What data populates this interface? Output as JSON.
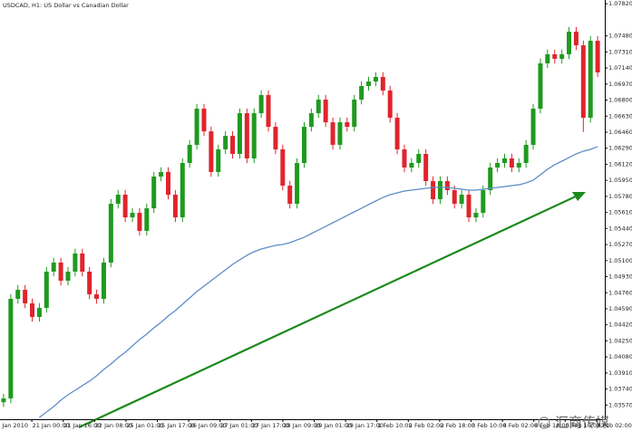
{
  "chart_data": {
    "type": "candlestick",
    "title": "USDCAD, H1: US Dollar vs Canadian Dollar",
    "up_color": "#1f9a1f",
    "down_color": "#e0242c",
    "open": [
      1.036,
      1.0364,
      1.04695,
      1.04791,
      1.04647,
      1.04503,
      1.04599,
      1.04983,
      1.05079,
      1.04887,
      1.04983,
      1.05175,
      1.04983,
      1.04743,
      1.04695,
      1.05079,
      1.05702,
      1.05798,
      1.05558,
      1.05606,
      1.05415,
      1.05654,
      1.0599,
      1.06038,
      1.05798,
      1.05558,
      1.06134,
      1.06326,
      1.06709,
      1.06469,
      1.06038,
      1.06278,
      1.06421,
      1.0623,
      1.06661,
      1.06182,
      1.06661,
      1.06853,
      1.06517,
      1.06278,
      1.05894,
      1.05702,
      1.06134,
      1.06517,
      1.06661,
      1.06805,
      1.06565,
      1.06326,
      1.06565,
      1.06517,
      1.06805,
      1.06949,
      1.06997,
      1.07045,
      1.06901,
      1.06613,
      1.06278,
      1.06086,
      1.06134,
      1.0623,
      1.05942,
      1.0575,
      1.05942,
      1.05846,
      1.05702,
      1.05798,
      1.05558,
      1.05606,
      1.05846,
      1.06086,
      1.06134,
      1.06182,
      1.06086,
      1.06134,
      1.06326,
      1.06709,
      1.07189,
      1.07285,
      1.07237,
      1.07285,
      1.07524,
      1.0738,
      1.06613,
      1.07428
    ],
    "high": [
      1.0369,
      1.04745,
      1.04841,
      1.04841,
      1.04697,
      1.04649,
      1.05033,
      1.05129,
      1.05129,
      1.05033,
      1.05225,
      1.05225,
      1.05033,
      1.04793,
      1.05129,
      1.05752,
      1.05848,
      1.05848,
      1.05656,
      1.05656,
      1.05704,
      1.0604,
      1.06088,
      1.06088,
      1.05848,
      1.06184,
      1.06376,
      1.06759,
      1.06759,
      1.06519,
      1.06328,
      1.06471,
      1.06471,
      1.06711,
      1.06711,
      1.06711,
      1.06903,
      1.06903,
      1.06567,
      1.06328,
      1.05944,
      1.06184,
      1.06567,
      1.06711,
      1.06855,
      1.06855,
      1.06615,
      1.06615,
      1.06615,
      1.06855,
      1.06999,
      1.07047,
      1.07095,
      1.07095,
      1.06951,
      1.06663,
      1.06328,
      1.06184,
      1.0628,
      1.0628,
      1.05992,
      1.05992,
      1.05992,
      1.05896,
      1.05848,
      1.05848,
      1.05656,
      1.05896,
      1.06136,
      1.06184,
      1.06232,
      1.06232,
      1.06184,
      1.06376,
      1.06759,
      1.07239,
      1.07335,
      1.07335,
      1.07335,
      1.07574,
      1.07574,
      1.0743,
      1.07478,
      1.07478
    ],
    "low": [
      1.0355,
      1.0359,
      1.04645,
      1.04597,
      1.04453,
      1.04453,
      1.04549,
      1.04933,
      1.04837,
      1.04837,
      1.04933,
      1.04933,
      1.04693,
      1.04645,
      1.04645,
      1.05029,
      1.05652,
      1.05508,
      1.05508,
      1.05365,
      1.05365,
      1.05604,
      1.0594,
      1.05748,
      1.05508,
      1.05508,
      1.06084,
      1.06276,
      1.06419,
      1.05988,
      1.05988,
      1.06228,
      1.0618,
      1.0618,
      1.06132,
      1.06132,
      1.06611,
      1.06467,
      1.06228,
      1.05844,
      1.05652,
      1.05652,
      1.06084,
      1.06467,
      1.06611,
      1.06515,
      1.06276,
      1.06276,
      1.06467,
      1.06467,
      1.06755,
      1.06899,
      1.06947,
      1.06851,
      1.06563,
      1.06228,
      1.06036,
      1.06036,
      1.06084,
      1.05892,
      1.057,
      1.057,
      1.05796,
      1.05652,
      1.05652,
      1.05508,
      1.05508,
      1.05556,
      1.05796,
      1.06036,
      1.06084,
      1.06036,
      1.06036,
      1.06084,
      1.06276,
      1.06659,
      1.07139,
      1.07187,
      1.07187,
      1.07235,
      1.0733,
      1.06463,
      1.06563,
      1.07043
    ],
    "close": [
      1.0364,
      1.04695,
      1.04791,
      1.04647,
      1.04503,
      1.04599,
      1.04983,
      1.05079,
      1.04887,
      1.04983,
      1.05175,
      1.04983,
      1.04743,
      1.04695,
      1.05079,
      1.05702,
      1.05798,
      1.05558,
      1.05606,
      1.05415,
      1.05654,
      1.0599,
      1.06038,
      1.05798,
      1.05558,
      1.06134,
      1.06326,
      1.06709,
      1.06469,
      1.06038,
      1.06278,
      1.06421,
      1.0623,
      1.06661,
      1.06182,
      1.06661,
      1.06853,
      1.06517,
      1.06278,
      1.05894,
      1.05702,
      1.06134,
      1.06517,
      1.06661,
      1.06805,
      1.06565,
      1.06326,
      1.06565,
      1.06517,
      1.06805,
      1.06949,
      1.06997,
      1.07045,
      1.06901,
      1.06613,
      1.06278,
      1.06086,
      1.06134,
      1.0623,
      1.05942,
      1.0575,
      1.05942,
      1.05846,
      1.05702,
      1.05798,
      1.05558,
      1.05606,
      1.05846,
      1.06086,
      1.06134,
      1.06182,
      1.06086,
      1.06134,
      1.06326,
      1.06709,
      1.07189,
      1.07285,
      1.07237,
      1.07285,
      1.07524,
      1.0738,
      1.06613,
      1.07428,
      1.07093
    ],
    "series": [
      {
        "color": "#5a8fc8",
        "values": [
          null,
          null,
          null,
          null,
          null,
          1.03439,
          1.03497,
          1.03554,
          1.03621,
          1.03679,
          1.03727,
          1.03775,
          1.03823,
          1.0388,
          1.03947,
          1.04005,
          1.04072,
          1.0413,
          1.04197,
          1.04264,
          1.04321,
          1.04388,
          1.04446,
          1.04513,
          1.04571,
          1.04638,
          1.04705,
          1.04772,
          1.0483,
          1.04887,
          1.04945,
          1.05002,
          1.0506,
          1.05108,
          1.05156,
          1.05194,
          1.05223,
          1.05242,
          1.05261,
          1.05271,
          1.0529,
          1.05319,
          1.05347,
          1.05386,
          1.05424,
          1.05462,
          1.05501,
          1.05539,
          1.05578,
          1.05616,
          1.05654,
          1.05693,
          1.05731,
          1.05769,
          1.05798,
          1.05817,
          1.05837,
          1.05846,
          1.05856,
          1.05865,
          1.05875,
          1.05875,
          1.05875,
          1.05865,
          1.05856,
          1.05846,
          1.05846,
          1.05856,
          1.05865,
          1.05875,
          1.05884,
          1.05894,
          1.05903,
          1.05923,
          1.05952,
          1.06009,
          1.06067,
          1.06115,
          1.06153,
          1.06191,
          1.0623,
          1.06259,
          1.06278,
          1.06307
        ]
      }
    ],
    "ylim": [
      1.0342,
      1.0786
    ],
    "yticks": [
      {
        "value": 1.0782,
        "label": "1.07820"
      },
      {
        "value": 1.0748,
        "label": "1.07480"
      },
      {
        "value": 1.0731,
        "label": "1.07310"
      },
      {
        "value": 1.0714,
        "label": "1.07140"
      },
      {
        "value": 1.0697,
        "label": "1.06970"
      },
      {
        "value": 1.068,
        "label": "1.06800"
      },
      {
        "value": 1.0663,
        "label": "1.06630"
      },
      {
        "value": 1.0646,
        "label": "1.06460"
      },
      {
        "value": 1.0629,
        "label": "1.06290"
      },
      {
        "value": 1.0612,
        "label": "1.06120"
      },
      {
        "value": 1.0595,
        "label": "1.05950"
      },
      {
        "value": 1.0578,
        "label": "1.05780"
      },
      {
        "value": 1.0561,
        "label": "1.05610"
      },
      {
        "value": 1.0544,
        "label": "1.05440"
      },
      {
        "value": 1.0527,
        "label": "1.05270"
      },
      {
        "value": 1.051,
        "label": "1.05100"
      },
      {
        "value": 1.0493,
        "label": "1.04930"
      },
      {
        "value": 1.0476,
        "label": "1.04760"
      },
      {
        "value": 1.0459,
        "label": "1.04590"
      },
      {
        "value": 1.0442,
        "label": "1.04420"
      },
      {
        "value": 1.0425,
        "label": "1.04250"
      },
      {
        "value": 1.0408,
        "label": "1.04080"
      },
      {
        "value": 1.0391,
        "label": "1.03910"
      },
      {
        "value": 1.0374,
        "label": "1.03740"
      },
      {
        "value": 1.0357,
        "label": "1.03570"
      }
    ],
    "xtick_labels": [
      "20 Jan 2010",
      "21 Jan 00:00",
      "21 Jan 16:00",
      "22 Jan 08:00",
      "25 Jan 01:00",
      "25 Jan 17:00",
      "26 Jan 09:00",
      "27 Jan 01:00",
      "27 Jan 17:00",
      "28 Jan 09:00",
      "29 Jan 01:00",
      "29 Jan 17:00",
      "1 Feb 10:00",
      "2 Feb 02:00",
      "2 Feb 18:00",
      "3 Feb 10:00",
      "4 Feb 02:00",
      "4 Feb 18:00",
      "5 Feb 10:00",
      "8 Feb 02:00"
    ],
    "watermark": "汇商传媒"
  }
}
